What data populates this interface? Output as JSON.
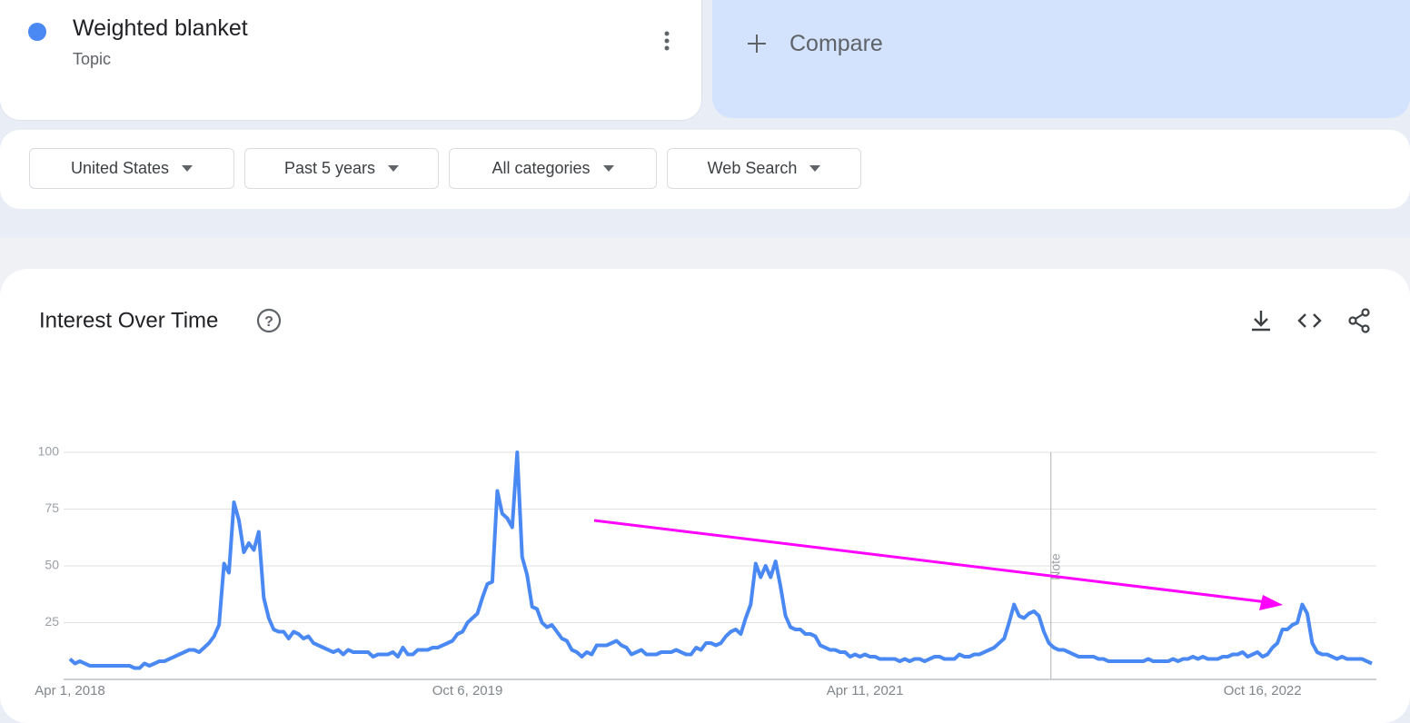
{
  "header": {
    "term": "Weighted blanket",
    "term_type": "Topic",
    "compare": "Compare"
  },
  "filters": [
    "United States",
    "Past 5 years",
    "All categories",
    "Web Search"
  ],
  "chart_data": {
    "type": "line",
    "title": "Interest Over Time",
    "annotation": "Note",
    "categories": [
      "Apr 1, 2018",
      null,
      null,
      null,
      null,
      null,
      null,
      null,
      null,
      null,
      null,
      null,
      null,
      null,
      null,
      null,
      null,
      null,
      null,
      null,
      null,
      null,
      null,
      null,
      null,
      null,
      null,
      null,
      null,
      null,
      null,
      null,
      null,
      null,
      null,
      null,
      null,
      null,
      null,
      null,
      null,
      null,
      null,
      null,
      null,
      null,
      null,
      null,
      null,
      null,
      null,
      null,
      null,
      null,
      null,
      null,
      null,
      null,
      null,
      null,
      null,
      null,
      null,
      null,
      null,
      null,
      null,
      null,
      null,
      null,
      null,
      null,
      null,
      null,
      null,
      null,
      null,
      null,
      null,
      null,
      "Oct 6, 2019",
      null,
      null,
      null,
      null,
      null,
      null,
      null,
      null,
      null,
      null,
      null,
      null,
      null,
      null,
      null,
      null,
      null,
      null,
      null,
      null,
      null,
      null,
      null,
      null,
      null,
      null,
      null,
      null,
      null,
      null,
      null,
      null,
      null,
      null,
      null,
      null,
      null,
      null,
      null,
      null,
      null,
      null,
      null,
      null,
      null,
      null,
      null,
      null,
      null,
      null,
      null,
      null,
      null,
      null,
      null,
      null,
      null,
      null,
      null,
      null,
      null,
      null,
      null,
      null,
      null,
      null,
      null,
      null,
      null,
      null,
      null,
      null,
      null,
      null,
      null,
      null,
      null,
      null,
      null,
      "Apr 11, 2021",
      null,
      null,
      null,
      null,
      null,
      null,
      null,
      null,
      null,
      null,
      null,
      null,
      null,
      null,
      null,
      null,
      null,
      null,
      null,
      null,
      null,
      null,
      null,
      null,
      null,
      null,
      null,
      null,
      null,
      null,
      null,
      null,
      null,
      null,
      null,
      null,
      null,
      null,
      null,
      null,
      null,
      null,
      null,
      null,
      null,
      null,
      null,
      null,
      null,
      null,
      null,
      null,
      null,
      null,
      null,
      null,
      null,
      null,
      null,
      null,
      null,
      null,
      null,
      null,
      null,
      null,
      null,
      null,
      null,
      null,
      null,
      null,
      null,
      null,
      null,
      null,
      null,
      null,
      null,
      "Oct 16, 2022",
      null,
      null,
      null,
      null,
      null,
      null,
      null,
      null,
      null,
      null,
      null,
      null,
      null,
      null,
      null,
      null,
      null,
      null,
      null,
      null,
      null,
      null
    ],
    "series": [
      {
        "name": "Weighted blanket",
        "color": "#4a89f3",
        "values": [
          9,
          7,
          8,
          7,
          6,
          6,
          6,
          6,
          6,
          6,
          6,
          6,
          6,
          5,
          5,
          7,
          6,
          7,
          8,
          8,
          9,
          10,
          11,
          12,
          13,
          13,
          12,
          14,
          16,
          19,
          24,
          51,
          47,
          78,
          70,
          56,
          60,
          57,
          65,
          36,
          27,
          22,
          21,
          21,
          18,
          21,
          20,
          18,
          19,
          16,
          15,
          14,
          13,
          12,
          13,
          11,
          13,
          12,
          12,
          12,
          12,
          10,
          11,
          11,
          11,
          12,
          10,
          14,
          11,
          11,
          13,
          13,
          13,
          14,
          14,
          15,
          16,
          17,
          20,
          21,
          25,
          27,
          29,
          36,
          42,
          43,
          83,
          73,
          71,
          67,
          100,
          54,
          46,
          32,
          31,
          25,
          23,
          24,
          21,
          18,
          17,
          13,
          12,
          10,
          12,
          11,
          15,
          15,
          15,
          16,
          17,
          15,
          14,
          11,
          12,
          13,
          11,
          11,
          11,
          12,
          12,
          12,
          13,
          12,
          11,
          11,
          14,
          13,
          16,
          16,
          15,
          16,
          19,
          21,
          22,
          20,
          27,
          33,
          51,
          45,
          50,
          45,
          52,
          41,
          28,
          23,
          22,
          22,
          20,
          20,
          19,
          15,
          14,
          13,
          13,
          12,
          12,
          10,
          11,
          10,
          11,
          10,
          10,
          9,
          9,
          9,
          9,
          8,
          9,
          8,
          9,
          9,
          8,
          9,
          10,
          10,
          9,
          9,
          9,
          11,
          10,
          10,
          11,
          11,
          12,
          13,
          14,
          16,
          18,
          25,
          33,
          28,
          27,
          29,
          30,
          28,
          21,
          16,
          14,
          13,
          13,
          12,
          11,
          10,
          10,
          10,
          10,
          9,
          9,
          8,
          8,
          8,
          8,
          8,
          8,
          8,
          8,
          9,
          8,
          8,
          8,
          8,
          9,
          8,
          9,
          9,
          10,
          9,
          10,
          9,
          9,
          9,
          10,
          10,
          11,
          11,
          12,
          10,
          11,
          12,
          10,
          11,
          14,
          16,
          22,
          22,
          24,
          25,
          33,
          29,
          16,
          12,
          11,
          11,
          10,
          9,
          10,
          9,
          9,
          9,
          9,
          8,
          7
        ]
      }
    ],
    "ylim": [
      0,
      100
    ],
    "yticks": [
      25,
      50,
      75,
      100
    ],
    "grid": true
  }
}
